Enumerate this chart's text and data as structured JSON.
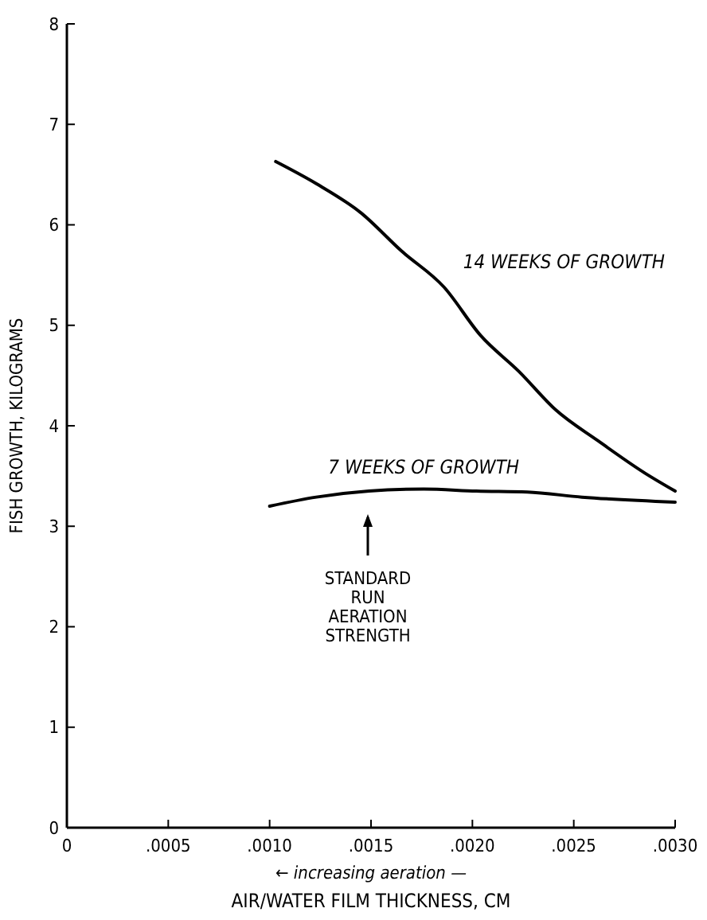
{
  "chart_data": {
    "type": "line",
    "xlabel": "AIR/WATER FILM THICKNESS, CM",
    "ylabel": "FISH GROWTH, KILOGRAMS",
    "xlim": [
      0,
      0.003
    ],
    "ylim": [
      0,
      8
    ],
    "xticks": [
      {
        "value": 0,
        "label": "0"
      },
      {
        "value": 0.0005,
        "label": ".0005"
      },
      {
        "value": 0.001,
        "label": ".0010"
      },
      {
        "value": 0.0015,
        "label": ".0015"
      },
      {
        "value": 0.002,
        "label": ".0020"
      },
      {
        "value": 0.0025,
        "label": ".0025"
      },
      {
        "value": 0.003,
        "label": ".0030"
      }
    ],
    "yticks": [
      0,
      1,
      2,
      3,
      4,
      5,
      6,
      7,
      8
    ],
    "grid": false,
    "marker": "none",
    "line_style": "solid",
    "annotations": [
      "← increasing aeration —",
      "STANDARD\nRUN\nAERATION\nSTRENGTH"
    ],
    "series": [
      {
        "name": "14 WEEKS OF GROWTH",
        "color": "#000000",
        "x": [
          0.00103,
          0.00123,
          0.00145,
          0.00165,
          0.00186,
          0.00204,
          0.00223,
          0.00241,
          0.00262,
          0.00285,
          0.003
        ],
        "values": [
          6.63,
          6.41,
          6.12,
          5.74,
          5.38,
          4.9,
          4.54,
          4.16,
          3.85,
          3.53,
          3.35
        ]
      },
      {
        "name": "7 WEEKS OF GROWTH",
        "color": "#000000",
        "x": [
          0.001,
          0.00123,
          0.00149,
          0.00176,
          0.00202,
          0.00227,
          0.00254,
          0.003
        ],
        "values": [
          3.2,
          3.29,
          3.35,
          3.37,
          3.35,
          3.34,
          3.29,
          3.24
        ]
      }
    ]
  }
}
